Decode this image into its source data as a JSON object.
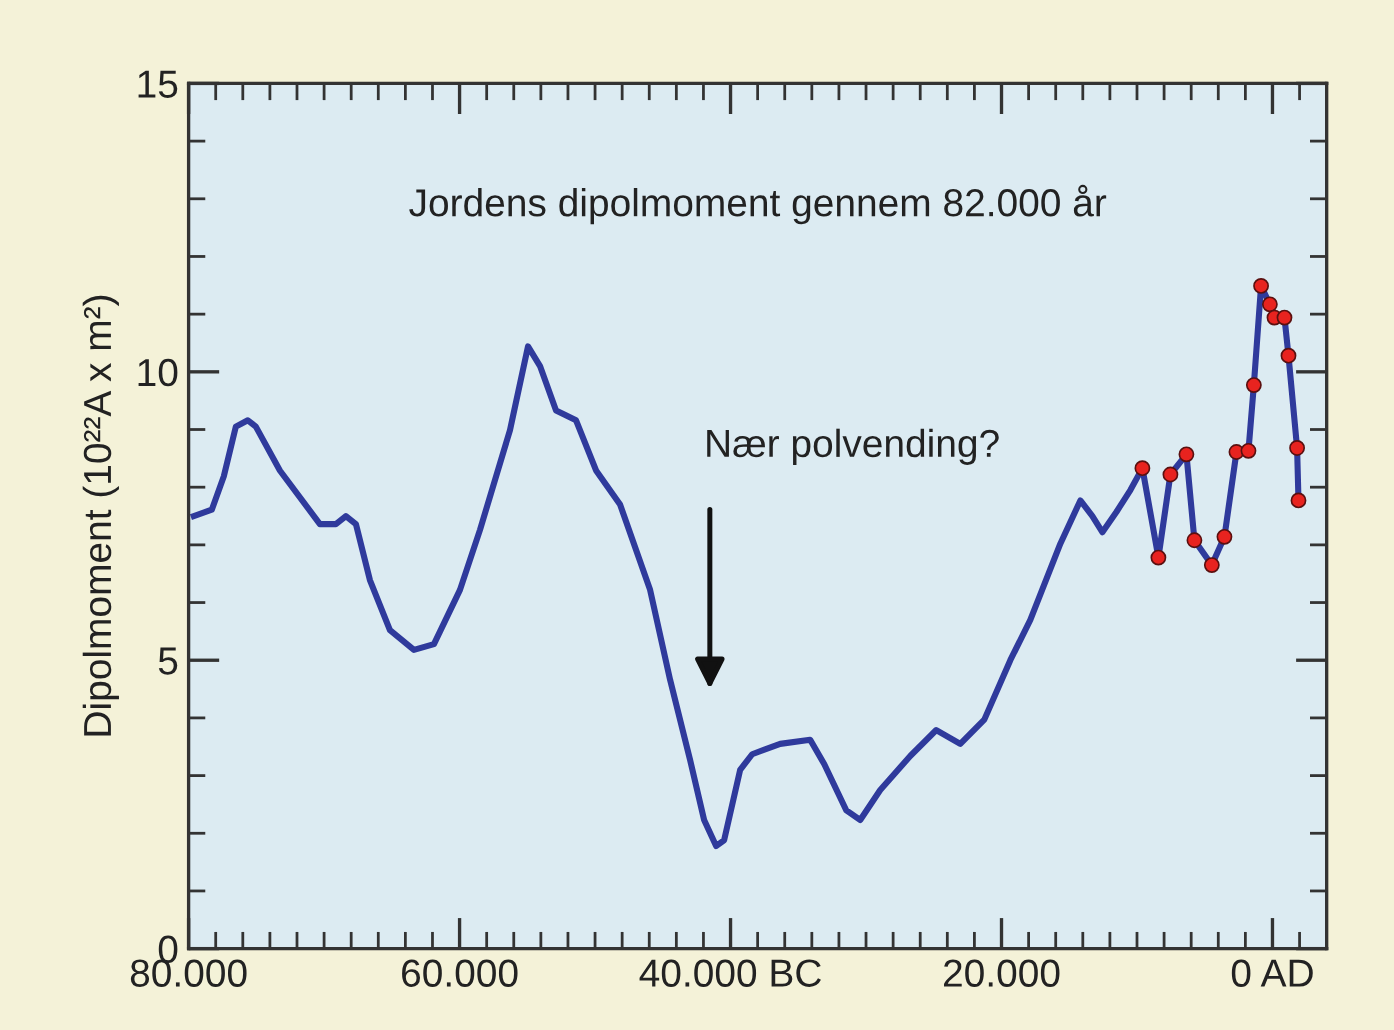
{
  "chart_data": {
    "type": "line",
    "title": "Jordens dipolmoment gennem 82.000 år",
    "ylabel": "Dipolmoment (10²²A x m²)",
    "annotations": [
      "Nær polvending?"
    ],
    "xlim": [
      -80000,
      4000
    ],
    "xticks": [
      {
        "value": -80000,
        "label": "80.000"
      },
      {
        "value": -78000,
        "label": null
      },
      {
        "value": -76000,
        "label": null
      },
      {
        "value": -74000,
        "label": null
      },
      {
        "value": -72000,
        "label": null
      },
      {
        "value": -70000,
        "label": null
      },
      {
        "value": -68000,
        "label": null
      },
      {
        "value": -66000,
        "label": null
      },
      {
        "value": -64000,
        "label": null
      },
      {
        "value": -62000,
        "label": null
      },
      {
        "value": -60000,
        "label": "60.000"
      },
      {
        "value": -58000,
        "label": null
      },
      {
        "value": -56000,
        "label": null
      },
      {
        "value": -54000,
        "label": null
      },
      {
        "value": -52000,
        "label": null
      },
      {
        "value": -50000,
        "label": null
      },
      {
        "value": -48000,
        "label": null
      },
      {
        "value": -46000,
        "label": null
      },
      {
        "value": -44000,
        "label": null
      },
      {
        "value": -42000,
        "label": null
      },
      {
        "value": -40000,
        "label": "40.000 BC"
      },
      {
        "value": -38000,
        "label": null
      },
      {
        "value": -36000,
        "label": null
      },
      {
        "value": -34000,
        "label": null
      },
      {
        "value": -32000,
        "label": null
      },
      {
        "value": -30000,
        "label": null
      },
      {
        "value": -28000,
        "label": null
      },
      {
        "value": -26000,
        "label": null
      },
      {
        "value": -24000,
        "label": null
      },
      {
        "value": -22000,
        "label": null
      },
      {
        "value": -20000,
        "label": "20.000"
      },
      {
        "value": -18000,
        "label": null
      },
      {
        "value": -16000,
        "label": null
      },
      {
        "value": -14000,
        "label": null
      },
      {
        "value": -12000,
        "label": null
      },
      {
        "value": -10000,
        "label": null
      },
      {
        "value": -8000,
        "label": null
      },
      {
        "value": -6000,
        "label": null
      },
      {
        "value": -4000,
        "label": null
      },
      {
        "value": -2000,
        "label": null
      },
      {
        "value": 0,
        "label": "0 AD"
      },
      {
        "value": 2000,
        "label": null
      }
    ],
    "ylim": [
      0,
      15
    ],
    "yticks": [
      0,
      {
        "value": 1,
        "label": null
      },
      {
        "value": 2,
        "label": null
      },
      {
        "value": 3,
        "label": null
      },
      {
        "value": 4,
        "label": null
      },
      5,
      {
        "value": 6,
        "label": null
      },
      {
        "value": 7,
        "label": null
      },
      {
        "value": 8,
        "label": null
      },
      {
        "value": 9,
        "label": null
      },
      10,
      {
        "value": 11,
        "label": null
      },
      {
        "value": 12,
        "label": null
      },
      {
        "value": 13,
        "label": null
      },
      {
        "value": 14,
        "label": null
      },
      15
    ],
    "grid": false,
    "series": [
      {
        "color": "#2f3a9c",
        "marker": "none",
        "line_style": "solid",
        "x": [
          -79616,
          -78287,
          -77400,
          -76514,
          -75628,
          -75037,
          -73264,
          -70310,
          -69129,
          -68390,
          -67652,
          -66618,
          -65140,
          -63368,
          -61891,
          -59970,
          -58493,
          -56278,
          -54948,
          -54062,
          -52880,
          -51403,
          -49926,
          -48154,
          -45938,
          -44461,
          -42984,
          -41950,
          -41064,
          -40473,
          -39291,
          -38405,
          -36337,
          -34121,
          -33087,
          -31462,
          -30428,
          -28951,
          -26736,
          -24815,
          -23043,
          -21270,
          -19350,
          -17873,
          -15657,
          -14180,
          -13294,
          -12555,
          -11521,
          -10487,
          -9601,
          -8420,
          -7533,
          -6352,
          -5761,
          -4476,
          -3545,
          -2659,
          -1773,
          -1374,
          -842,
          -192,
          148,
          886,
          1182,
          1817,
          1920
        ],
        "values": [
          7.5,
          7.61,
          8.19,
          9.05,
          9.16,
          9.05,
          8.29,
          7.36,
          7.36,
          7.5,
          7.36,
          6.39,
          5.52,
          5.18,
          5.28,
          6.22,
          7.26,
          8.99,
          10.44,
          10.1,
          9.33,
          9.16,
          8.29,
          7.7,
          6.22,
          4.66,
          3.27,
          2.23,
          1.78,
          1.88,
          3.1,
          3.37,
          3.55,
          3.62,
          3.2,
          2.4,
          2.23,
          2.75,
          3.34,
          3.79,
          3.55,
          3.97,
          5.0,
          5.7,
          7.02,
          7.77,
          7.5,
          7.22,
          7.57,
          7.95,
          8.33,
          6.78,
          8.22,
          8.57,
          7.08,
          6.65,
          7.14,
          8.61,
          8.63,
          9.77,
          11.49,
          11.17,
          10.94,
          10.94,
          10.28,
          8.68,
          7.77
        ]
      },
      {
        "type": "scatter",
        "color": "#e8231f",
        "marker": "circle",
        "x": [
          -9601,
          -8420,
          -7533,
          -6352,
          -5761,
          -4476,
          -3545,
          -2659,
          -1773,
          -1374,
          -842,
          -192,
          148,
          886,
          1182,
          1817,
          1920
        ],
        "values": [
          8.33,
          6.78,
          8.22,
          8.57,
          7.08,
          6.65,
          7.14,
          8.61,
          8.63,
          9.77,
          11.49,
          11.17,
          10.94,
          10.94,
          10.28,
          8.68,
          7.77
        ]
      }
    ]
  }
}
